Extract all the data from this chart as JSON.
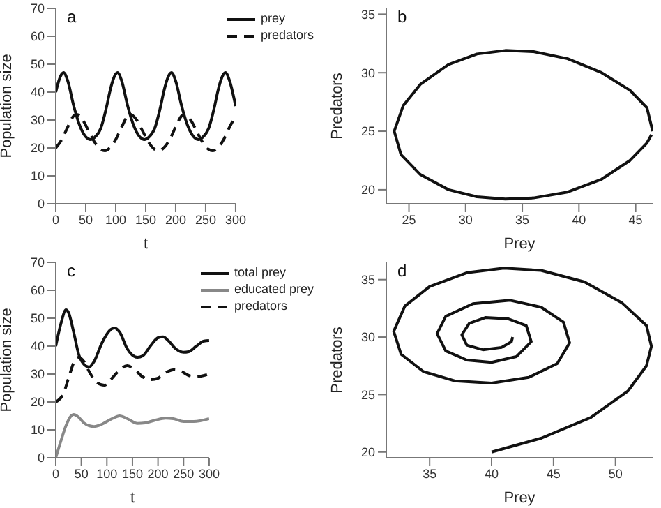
{
  "chart_data": [
    {
      "type": "line",
      "title": "a",
      "xlabel": "t",
      "ylabel": "Population size",
      "xlim": [
        0,
        300
      ],
      "xticks": [
        0,
        50,
        100,
        150,
        200,
        250,
        300
      ],
      "ylim": [
        0,
        70
      ],
      "yticks": [
        0,
        10,
        20,
        30,
        40,
        50,
        60,
        70
      ],
      "grid": false,
      "legend": "top right",
      "marker": "none",
      "series": [
        {
          "name": "prey",
          "color": "#111111",
          "line_style": "solid",
          "x": [
            0,
            5,
            10,
            13,
            20,
            30,
            40,
            50,
            58,
            65,
            75,
            85,
            90,
            95,
            100,
            103,
            110,
            120,
            130,
            140,
            148,
            155,
            165,
            175,
            180,
            185,
            190,
            193,
            200,
            210,
            220,
            230,
            238,
            245,
            255,
            265,
            270,
            275,
            280,
            283,
            290,
            300
          ],
          "values": [
            40,
            44,
            46.5,
            47,
            44,
            35,
            28,
            24,
            23,
            23.8,
            27,
            35,
            40,
            44,
            46.5,
            47,
            44,
            35,
            28,
            24,
            23,
            23.8,
            27,
            35,
            40,
            44,
            46.5,
            47,
            44,
            35,
            28,
            24,
            23,
            23.8,
            27,
            35,
            40,
            44,
            46.5,
            47,
            44,
            35
          ]
        },
        {
          "name": "predators",
          "color": "#111111",
          "line_style": "dashed",
          "x": [
            0,
            10,
            20,
            30,
            35,
            45,
            55,
            65,
            75,
            82,
            90,
            100,
            110,
            120,
            125,
            135,
            145,
            155,
            165,
            172,
            180,
            190,
            200,
            210,
            215,
            225,
            235,
            245,
            255,
            262,
            270,
            280,
            290,
            300
          ],
          "values": [
            20,
            23,
            27.5,
            31.5,
            32,
            30,
            26,
            22,
            19.5,
            19,
            20,
            23,
            27.5,
            31.5,
            32,
            30,
            26,
            22,
            19.5,
            19,
            20,
            23,
            27.5,
            31.5,
            32,
            30,
            26,
            22,
            19.5,
            19,
            20,
            23,
            27.5,
            31.5
          ]
        }
      ]
    },
    {
      "type": "line",
      "title": "b",
      "xlabel": "Prey",
      "ylabel": "Predators",
      "xlim": [
        23,
        46.5
      ],
      "xticks": [
        25,
        30,
        35,
        40,
        45
      ],
      "ylim": [
        18.8,
        35.5
      ],
      "yticks": [
        20,
        25,
        30,
        35
      ],
      "grid": false,
      "legend": false,
      "marker": "none",
      "series": [
        {
          "color": "#111111",
          "line_style": "solid",
          "x": [
            46.5,
            46,
            44.5,
            42,
            39,
            36,
            33.5,
            31,
            28.5,
            26,
            24.5,
            23.7,
            24.3,
            26,
            28.5,
            31,
            33.5,
            36,
            39,
            42,
            44.5,
            46,
            46.4
          ],
          "values": [
            25,
            27,
            28.5,
            30,
            31.2,
            31.8,
            31.9,
            31.6,
            30.7,
            29,
            27.2,
            25,
            23,
            21.3,
            20,
            19.4,
            19.2,
            19.3,
            19.8,
            20.9,
            22.5,
            24,
            24.7
          ]
        }
      ]
    },
    {
      "type": "line",
      "title": "c",
      "xlabel": "t",
      "ylabel": "Population size",
      "xlim": [
        0,
        300
      ],
      "xticks": [
        0,
        50,
        100,
        150,
        200,
        250,
        300
      ],
      "ylim": [
        0,
        70
      ],
      "yticks": [
        0,
        10,
        20,
        30,
        40,
        50,
        60,
        70
      ],
      "grid": false,
      "legend": "top right",
      "marker": "none",
      "series": [
        {
          "name": "total prey",
          "color": "#111111",
          "line_style": "solid",
          "x": [
            0,
            10,
            20,
            25,
            35,
            45,
            55,
            65,
            75,
            90,
            105,
            115,
            125,
            140,
            160,
            170,
            185,
            200,
            210,
            220,
            235,
            250,
            260,
            275,
            290,
            300
          ],
          "values": [
            40,
            48,
            53,
            52,
            45,
            37,
            33.5,
            32.5,
            34.5,
            41,
            45.5,
            46.5,
            45,
            39,
            36,
            36.5,
            40,
            43,
            43.3,
            42,
            39,
            37.8,
            38,
            40,
            41.8,
            42
          ]
        },
        {
          "name": "educated prey",
          "color": "#888888",
          "line_style": "solid",
          "x": [
            0,
            10,
            20,
            30,
            35,
            45,
            55,
            65,
            75,
            90,
            110,
            125,
            140,
            160,
            175,
            195,
            215,
            230,
            250,
            270,
            300
          ],
          "values": [
            0,
            6,
            11.5,
            15,
            15.5,
            14.5,
            12.5,
            11.5,
            11.2,
            12,
            14,
            15,
            14,
            12.3,
            12.5,
            13.5,
            14.2,
            14,
            13,
            13,
            14
          ]
        },
        {
          "name": "predators",
          "color": "#111111",
          "line_style": "dashed",
          "x": [
            0,
            15,
            25,
            35,
            45,
            55,
            65,
            80,
            95,
            110,
            125,
            140,
            155,
            170,
            185,
            200,
            215,
            230,
            245,
            260,
            275,
            290,
            300
          ],
          "values": [
            20,
            23,
            28.5,
            34,
            36,
            34.5,
            31,
            27,
            26,
            28.5,
            31.5,
            33,
            31.5,
            29,
            28,
            28.5,
            30.5,
            31.5,
            31,
            29.5,
            29,
            29.5,
            30
          ]
        }
      ]
    },
    {
      "type": "line",
      "title": "d",
      "xlabel": "Prey",
      "ylabel": "Predators",
      "xlim": [
        31.5,
        53
      ],
      "xticks": [
        35,
        40,
        45,
        50
      ],
      "ylim": [
        19.5,
        36.5
      ],
      "yticks": [
        20,
        25,
        30,
        35
      ],
      "grid": false,
      "legend": false,
      "marker": "none",
      "series": [
        {
          "color": "#111111",
          "line_style": "solid",
          "x": [
            40,
            44,
            48,
            51,
            52.5,
            52.9,
            52.5,
            50.5,
            47.5,
            44,
            41,
            38,
            35,
            33,
            32.1,
            32.7,
            34.5,
            37,
            40,
            43,
            45.3,
            46.3,
            45.8,
            44,
            41.5,
            38.5,
            36.3,
            35.6,
            36.3,
            38,
            40,
            42,
            43.2,
            42.8,
            41.3,
            39.5,
            38.2,
            37.6,
            38,
            39.3,
            40.8,
            41.6,
            41.7
          ],
          "values": [
            20,
            21.2,
            23,
            25.3,
            27.5,
            29.2,
            31,
            33,
            34.8,
            35.8,
            36,
            35.6,
            34.4,
            32.7,
            30.5,
            28.5,
            27,
            26.2,
            26,
            26.5,
            27.7,
            29.5,
            31.3,
            32.6,
            33.2,
            32.9,
            31.8,
            30.3,
            28.8,
            28,
            27.8,
            28.3,
            29.6,
            31,
            31.6,
            31.7,
            31.2,
            30.2,
            29.3,
            28.9,
            29.1,
            29.6,
            30
          ]
        }
      ]
    }
  ]
}
